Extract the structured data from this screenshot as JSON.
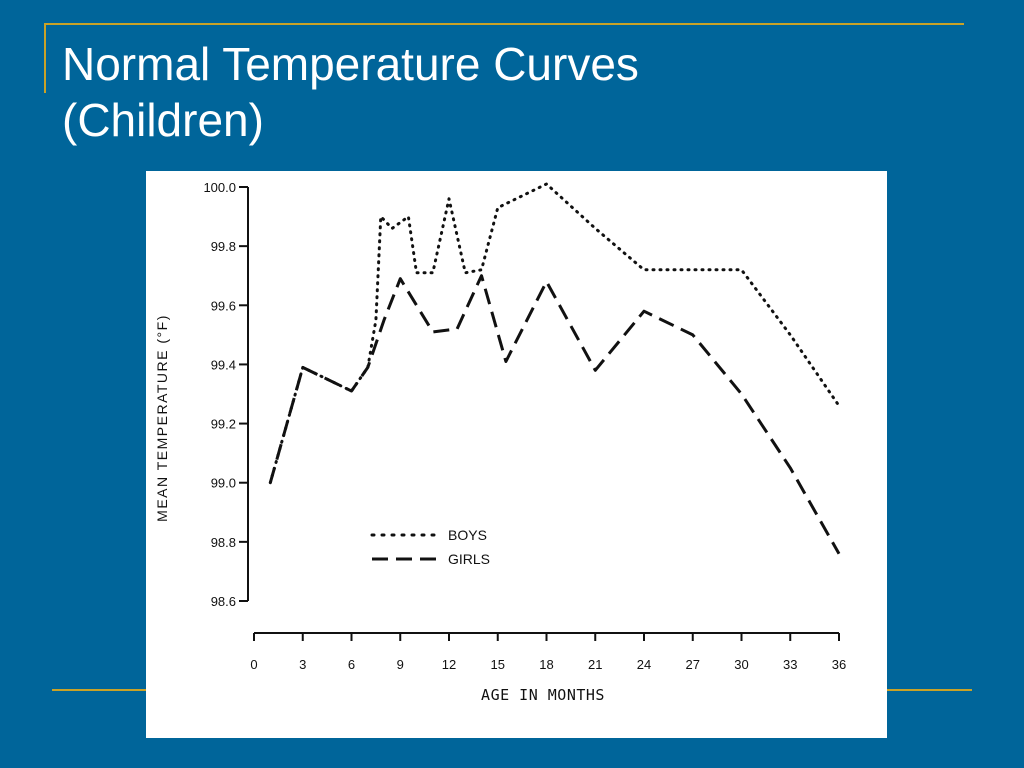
{
  "slide": {
    "title_line1": "Normal Temperature Curves",
    "title_line2": "(Children)",
    "background": "#00659a",
    "accent": "#c9a227"
  },
  "chart_data": {
    "type": "line",
    "ylabel": "MEAN TEMPERATURE (°F)",
    "xlabel": "AGE IN MONTHS",
    "ylim": [
      98.6,
      100.0
    ],
    "xlim": [
      0,
      36
    ],
    "y_ticks": [
      "98.6",
      "98.8",
      "99.0",
      "99.2",
      "99.4",
      "99.6",
      "99.8",
      "100.0"
    ],
    "x_ticks": [
      "0",
      "3",
      "6",
      "9",
      "12",
      "15",
      "18",
      "21",
      "24",
      "27",
      "30",
      "33",
      "36"
    ],
    "grid": false,
    "legend_position": "lower-center",
    "series": [
      {
        "name": "BOYS",
        "style": "dotted",
        "points": [
          [
            1,
            99.0
          ],
          [
            3,
            99.39
          ],
          [
            6,
            99.31
          ],
          [
            7,
            99.39
          ],
          [
            7.5,
            99.55
          ],
          [
            7.8,
            99.9
          ],
          [
            8.5,
            99.86
          ],
          [
            9.5,
            99.9
          ],
          [
            10,
            99.71
          ],
          [
            11,
            99.71
          ],
          [
            12,
            99.96
          ],
          [
            13,
            99.71
          ],
          [
            14,
            99.72
          ],
          [
            15,
            99.93
          ],
          [
            18,
            100.01
          ],
          [
            21,
            99.86
          ],
          [
            24,
            99.72
          ],
          [
            27,
            99.72
          ],
          [
            30,
            99.72
          ],
          [
            33,
            99.5
          ],
          [
            36,
            99.26
          ]
        ]
      },
      {
        "name": "GIRLS",
        "style": "dashed",
        "points": [
          [
            1,
            99.0
          ],
          [
            3,
            99.39
          ],
          [
            6,
            99.31
          ],
          [
            7,
            99.39
          ],
          [
            8,
            99.55
          ],
          [
            9,
            99.69
          ],
          [
            11,
            99.51
          ],
          [
            12.5,
            99.52
          ],
          [
            14,
            99.7
          ],
          [
            15.5,
            99.41
          ],
          [
            18,
            99.68
          ],
          [
            21,
            99.38
          ],
          [
            24,
            99.58
          ],
          [
            27,
            99.5
          ],
          [
            30,
            99.3
          ],
          [
            33,
            99.05
          ],
          [
            36,
            98.76
          ]
        ]
      }
    ]
  }
}
